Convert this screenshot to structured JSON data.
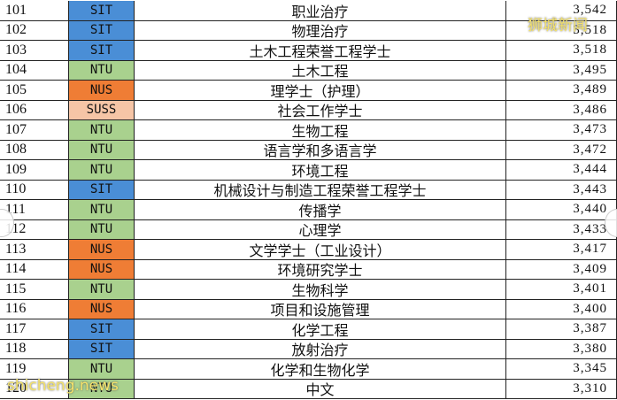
{
  "table": {
    "rows": [
      [
        "101",
        "SIT",
        "职业治疗",
        "3,542"
      ],
      [
        "102",
        "SIT",
        "物理治疗",
        "3,518"
      ],
      [
        "103",
        "SIT",
        "土木工程荣誉工程学士",
        "3,518"
      ],
      [
        "104",
        "NTU",
        "土木工程",
        "3,495"
      ],
      [
        "105",
        "NUS",
        "理学士（护理）",
        "3,489"
      ],
      [
        "106",
        "SUSS",
        "社会工作学士",
        "3,486"
      ],
      [
        "107",
        "NTU",
        "生物工程",
        "3,473"
      ],
      [
        "108",
        "NTU",
        "语言学和多语言学",
        "3,472"
      ],
      [
        "109",
        "NTU",
        "环境工程",
        "3,444"
      ],
      [
        "110",
        "SIT",
        "机械设计与制造工程荣誉工程学士",
        "3,443"
      ],
      [
        "111",
        "NTU",
        "传播学",
        "3,440"
      ],
      [
        "112",
        "NTU",
        "心理学",
        "3,433"
      ],
      [
        "113",
        "NUS",
        "文学学士（工业设计）",
        "3,417"
      ],
      [
        "114",
        "NUS",
        "环境研究学士",
        "3,409"
      ],
      [
        "115",
        "NTU",
        "生物科学",
        "3,401"
      ],
      [
        "116",
        "NUS",
        "项目和设施管理",
        "3,400"
      ],
      [
        "117",
        "SIT",
        "化学工程",
        "3,387"
      ],
      [
        "118",
        "SIT",
        "放射治疗",
        "3,380"
      ],
      [
        "119",
        "NTU",
        "化学和生物化学",
        "3,345"
      ],
      [
        "120",
        "NTU",
        "中文",
        "3,310"
      ]
    ],
    "school_colors": {
      "SIT": "#4a8ed6",
      "NTU": "#a9d18e",
      "NUS": "#ef7d35",
      "SUSS": "#f6c5a6"
    }
  },
  "watermarks": {
    "top": "狮城新闻",
    "bottom": "shicheng.news"
  }
}
